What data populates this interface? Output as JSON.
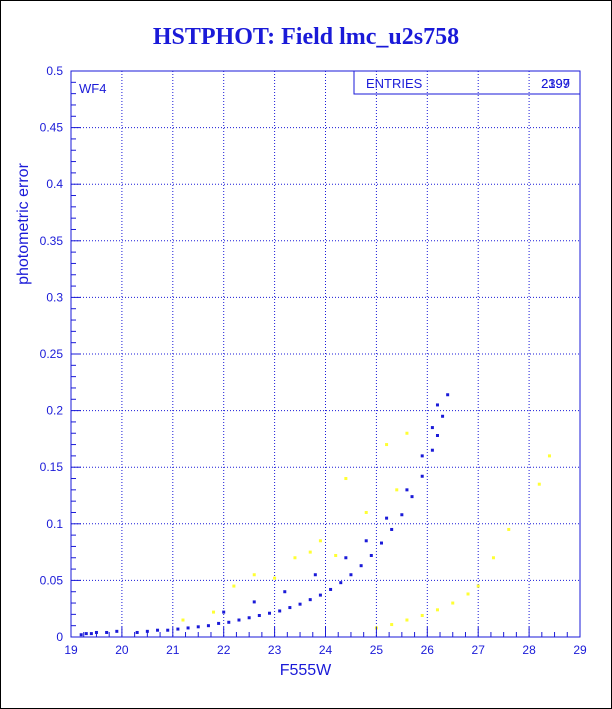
{
  "page_title": "HSTPHOT: Field lmc_u2s758",
  "colors": {
    "frame": "#1a1ad8",
    "grid": "#1a1ad8",
    "title": "#1a1ad8",
    "series_primary": "#1a1ad8",
    "series_secondary": "#ffff33"
  },
  "chart_data": {
    "type": "scatter",
    "title": "HSTPHOT: Field lmc_u2s758",
    "xlabel": "F555W",
    "ylabel": "photometric error",
    "xlim": [
      19,
      29
    ],
    "ylim": [
      0,
      0.5
    ],
    "xticks": [
      "19",
      "20",
      "21",
      "22",
      "23",
      "24",
      "25",
      "26",
      "27",
      "28",
      "29"
    ],
    "yticks": [
      "0",
      "0.05",
      "0.1",
      "0.15",
      "0.2",
      "0.25",
      "0.3",
      "0.35",
      "0.4",
      "0.45",
      "0.5"
    ],
    "grid": true,
    "panel_label": "WF4",
    "stats_box": {
      "location": "top-right",
      "label": "ENTRIES",
      "values": [
        "2199",
        "2397"
      ]
    },
    "series": [
      {
        "color": "#1a1ad8",
        "points": [
          [
            19.2,
            0.002
          ],
          [
            19.3,
            0.003
          ],
          [
            19.4,
            0.003
          ],
          [
            19.5,
            0.004
          ],
          [
            19.7,
            0.004
          ],
          [
            19.9,
            0.005
          ],
          [
            20.3,
            0.004
          ],
          [
            20.5,
            0.005
          ],
          [
            20.7,
            0.006
          ],
          [
            20.9,
            0.006
          ],
          [
            21.1,
            0.007
          ],
          [
            21.3,
            0.008
          ],
          [
            21.5,
            0.009
          ],
          [
            21.7,
            0.01
          ],
          [
            21.9,
            0.012
          ],
          [
            22.1,
            0.013
          ],
          [
            22.3,
            0.015
          ],
          [
            22.5,
            0.017
          ],
          [
            22.7,
            0.019
          ],
          [
            22.9,
            0.021
          ],
          [
            23.1,
            0.023
          ],
          [
            23.3,
            0.026
          ],
          [
            23.5,
            0.029
          ],
          [
            23.7,
            0.033
          ],
          [
            23.9,
            0.037
          ],
          [
            24.1,
            0.042
          ],
          [
            24.3,
            0.048
          ],
          [
            24.5,
            0.055
          ],
          [
            24.7,
            0.063
          ],
          [
            24.9,
            0.072
          ],
          [
            25.1,
            0.083
          ],
          [
            25.3,
            0.095
          ],
          [
            25.5,
            0.108
          ],
          [
            25.7,
            0.124
          ],
          [
            25.9,
            0.142
          ],
          [
            26.1,
            0.165
          ],
          [
            26.2,
            0.178
          ],
          [
            26.3,
            0.195
          ],
          [
            26.4,
            0.214
          ],
          [
            22.0,
            0.022
          ],
          [
            22.6,
            0.031
          ],
          [
            23.2,
            0.04
          ],
          [
            23.8,
            0.055
          ],
          [
            24.4,
            0.07
          ],
          [
            24.8,
            0.085
          ],
          [
            25.2,
            0.105
          ],
          [
            25.6,
            0.13
          ],
          [
            25.9,
            0.16
          ],
          [
            26.1,
            0.185
          ],
          [
            26.2,
            0.205
          ]
        ]
      },
      {
        "color": "#ffff33",
        "points": [
          [
            21.2,
            0.015
          ],
          [
            21.8,
            0.022
          ],
          [
            22.2,
            0.045
          ],
          [
            22.6,
            0.055
          ],
          [
            23.0,
            0.052
          ],
          [
            23.4,
            0.07
          ],
          [
            23.7,
            0.075
          ],
          [
            23.9,
            0.085
          ],
          [
            24.2,
            0.072
          ],
          [
            24.4,
            0.14
          ],
          [
            24.8,
            0.11
          ],
          [
            25.2,
            0.17
          ],
          [
            25.4,
            0.13
          ],
          [
            25.6,
            0.18
          ],
          [
            25.0,
            0.008
          ],
          [
            25.3,
            0.011
          ],
          [
            25.6,
            0.015
          ],
          [
            25.9,
            0.019
          ],
          [
            26.2,
            0.024
          ],
          [
            26.5,
            0.03
          ],
          [
            26.8,
            0.038
          ],
          [
            27.0,
            0.045
          ],
          [
            27.3,
            0.07
          ],
          [
            27.6,
            0.095
          ],
          [
            28.2,
            0.135
          ],
          [
            28.4,
            0.16
          ]
        ]
      }
    ]
  }
}
